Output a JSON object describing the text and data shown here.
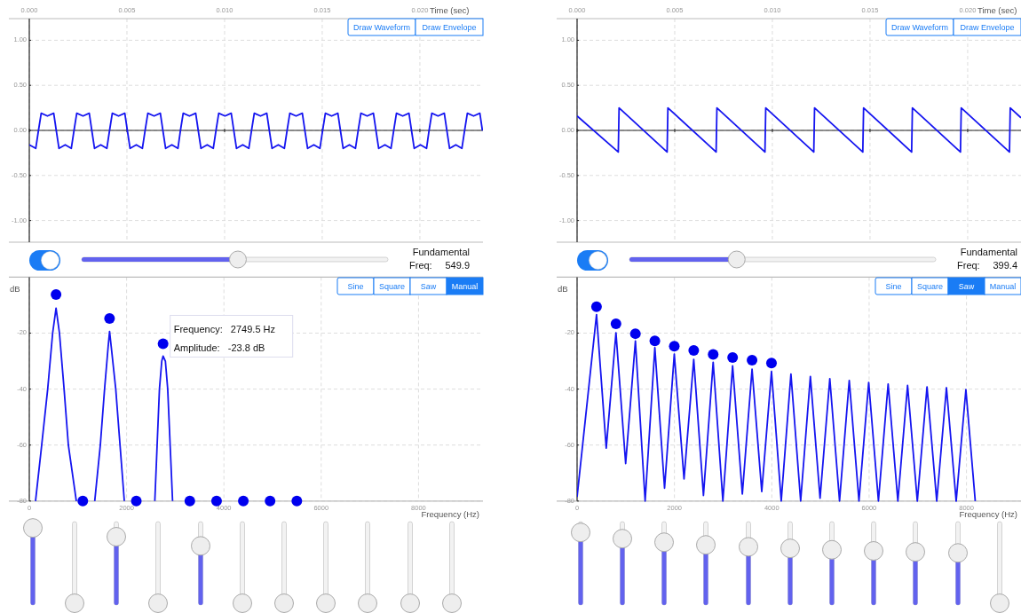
{
  "chart_data": [
    {
      "type": "line",
      "xlabel": "Time (sec)",
      "xlim": [
        0,
        0.02323
      ],
      "ylim": [
        -1.24,
        1.24
      ],
      "grid": true,
      "xticks": [
        {
          "value": 0,
          "label": "0.000"
        },
        {
          "value": 0.005,
          "label": "0.005"
        },
        {
          "value": 0.01,
          "label": "0.010"
        },
        {
          "value": 0.015,
          "label": "0.015"
        },
        {
          "value": 0.02,
          "label": "0.020"
        }
      ],
      "yticks": [
        {
          "value": 1,
          "label": "1.00"
        },
        {
          "value": 0.5,
          "label": "0.50"
        },
        {
          "value": 0,
          "label": "0.00"
        },
        {
          "value": -0.5,
          "label": "-0.50"
        },
        {
          "value": -1,
          "label": "-1.00"
        }
      ],
      "annotations": [
        "Draw Waveform",
        "Draw Envelope",
        "Fundamental",
        "Freq:",
        "549.9"
      ],
      "series": [
        {
          "color": "#1515f0",
          "x": [
            0,
            0.00033,
            0.00047,
            0.00061,
            0.00093,
            0.00125,
            0.00138,
            0.00152,
            0.00184,
            0.00215,
            0.00229,
            0.00243,
            0.00275,
            0.00307,
            0.0032,
            0.00334,
            0.00366,
            0.00397,
            0.00411,
            0.00425,
            0.00457,
            0.00489,
            0.00502,
            0.00516,
            0.00548,
            0.00579,
            0.00593,
            0.00607,
            0.00639,
            0.00671,
            0.00684,
            0.00698,
            0.0073,
            0.00761,
            0.00774,
            0.00788,
            0.0082,
            0.00852,
            0.00865,
            0.00879,
            0.00911,
            0.00942,
            0.00956,
            0.0097,
            0.01002,
            0.01034,
            0.01047,
            0.01061,
            0.01093,
            0.01124,
            0.01138,
            0.01152,
            0.01184,
            0.01216,
            0.01229,
            0.01243,
            0.01275,
            0.01306,
            0.0132,
            0.01334,
            0.01366,
            0.01398,
            0.01411,
            0.01425,
            0.01457,
            0.01488,
            0.01502,
            0.01516,
            0.01548,
            0.0158,
            0.01593,
            0.01607,
            0.01639,
            0.0167,
            0.01684,
            0.01698,
            0.0173,
            0.01762,
            0.01775,
            0.01789,
            0.01821,
            0.01852,
            0.01866,
            0.0188,
            0.01912,
            0.01944,
            0.01957,
            0.01971,
            0.02003,
            0.02034,
            0.02047,
            0.02061,
            0.02093,
            0.02125,
            0.02138,
            0.02152,
            0.02184,
            0.02215,
            0.02229,
            0.02243,
            0.02275,
            0.02307,
            0.0232
          ],
          "values": [
            -0.16,
            -0.2,
            0,
            0.19,
            0.16,
            0.19,
            0,
            -0.2,
            -0.16,
            -0.2,
            0,
            0.19,
            0.16,
            0.19,
            0,
            -0.2,
            -0.16,
            -0.2,
            0,
            0.19,
            0.16,
            0.19,
            0,
            -0.2,
            -0.16,
            -0.2,
            0,
            0.19,
            0.16,
            0.19,
            0,
            -0.2,
            -0.16,
            -0.2,
            0,
            0.19,
            0.16,
            0.19,
            0,
            -0.2,
            -0.16,
            -0.2,
            0,
            0.19,
            0.16,
            0.19,
            0,
            -0.2,
            -0.16,
            -0.2,
            0,
            0.19,
            0.16,
            0.19,
            0,
            -0.2,
            -0.16,
            -0.2,
            0,
            0.19,
            0.16,
            0.19,
            0,
            -0.2,
            -0.16,
            -0.2,
            0,
            0.19,
            0.16,
            0.19,
            0,
            -0.2,
            -0.16,
            -0.2,
            0,
            0.19,
            0.16,
            0.19,
            0,
            -0.2,
            -0.16,
            -0.2,
            0,
            0.19,
            0.16,
            0.19,
            0,
            -0.2,
            -0.16,
            -0.2,
            0,
            0.19,
            0.16,
            0.19,
            0,
            -0.2,
            -0.16,
            -0.2,
            0,
            0.19,
            0.16,
            0.19,
            0
          ]
        }
      ]
    },
    {
      "type": "line",
      "xlabel": "Frequency (Hz)",
      "ylabel": "dB",
      "xlim": [
        0,
        9325
      ],
      "ylim": [
        -80,
        0
      ],
      "grid": true,
      "xticks": [
        0,
        2000,
        4000,
        6000,
        8000
      ],
      "yticks": [
        -20,
        -40,
        -60,
        -80
      ],
      "annotations": [
        "Sine",
        "Square",
        "Saw",
        "Manual",
        {
          "text": "Frequency:   2749.5 Hz",
          "x": 2749.5,
          "y": -23.8
        },
        {
          "text": "Amplitude:   -23.8 dB",
          "x": 2749.5,
          "y": -23.8
        }
      ],
      "series": [
        {
          "color": "#1515f0",
          "x": [
            128,
            255,
            378,
            480,
            550,
            620,
            715,
            803,
            967,
            1150,
            1345,
            1460,
            1547,
            1620,
            1650,
            1685,
            1777,
            1865,
            1953,
            2200,
            2580,
            2675,
            2723,
            2750,
            2797,
            2845,
            2945
          ],
          "values": [
            -80,
            -60,
            -40,
            -20,
            -11.1,
            -20,
            -40,
            -60,
            -80,
            null,
            -80,
            -60,
            -40,
            -25,
            -19.4,
            -25,
            -40,
            -60,
            -80,
            null,
            -80,
            -40,
            -30,
            -28.2,
            -30,
            -40,
            -80
          ]
        },
        {
          "type": "scatter",
          "marker": "circle",
          "color": "#0000ee",
          "x": [
            549.9,
            1099.8,
            1649.7,
            2199.6,
            2749.5,
            3299.4,
            3849.3,
            4399.2,
            4949.1,
            5499
          ],
          "values": [
            -6.2,
            -80,
            -14.8,
            -80,
            -23.8,
            -80,
            -80,
            -80,
            -80,
            -80
          ]
        }
      ]
    },
    {
      "type": "line",
      "xlabel": "Time (sec)",
      "xlim": [
        0,
        0.02273
      ],
      "ylim": [
        -1.24,
        1.24
      ],
      "grid": true,
      "xticks": [
        {
          "value": 0,
          "label": "0.000"
        },
        {
          "value": 0.005,
          "label": "0.005"
        },
        {
          "value": 0.01,
          "label": "0.010"
        },
        {
          "value": 0.015,
          "label": "0.015"
        },
        {
          "value": 0.02,
          "label": "0.020"
        }
      ],
      "yticks": [
        {
          "value": 1,
          "label": "1.00"
        },
        {
          "value": 0.5,
          "label": "0.50"
        },
        {
          "value": 0,
          "label": "0.00"
        },
        {
          "value": -0.5,
          "label": "-0.50"
        },
        {
          "value": -1,
          "label": "-1.00"
        }
      ],
      "annotations": [
        "Draw Waveform",
        "Draw Envelope",
        "Fundamental",
        "Freq:",
        "399.4"
      ],
      "series": [
        {
          "color": "#1515f0",
          "x": [
            0,
            0.00211,
            0.00215,
            0.00461,
            0.00465,
            0.00712,
            0.00716,
            0.00962,
            0.00966,
            0.01212,
            0.01216,
            0.01463,
            0.01467,
            0.01713,
            0.01717,
            0.01963,
            0.01967,
            0.02214,
            0.02218,
            0.02273
          ],
          "values": [
            0.16,
            -0.24,
            0.25,
            -0.24,
            0.25,
            -0.24,
            0.25,
            -0.24,
            0.25,
            -0.24,
            0.25,
            -0.24,
            0.25,
            -0.24,
            0.25,
            -0.24,
            0.25,
            -0.24,
            0.25,
            0.14
          ]
        }
      ]
    },
    {
      "type": "line",
      "xlabel": "Frequency (Hz)",
      "ylabel": "dB",
      "xlim": [
        0,
        9120
      ],
      "ylim": [
        -80,
        0
      ],
      "grid": true,
      "xticks": [
        0,
        2000,
        4000,
        6000,
        8000
      ],
      "yticks": [
        -20,
        -40,
        -60,
        -80
      ],
      "annotations": [
        "Sine",
        "Square",
        "Saw",
        "Manual"
      ],
      "series": [
        {
          "color": "#1515f0",
          "x": [
            0,
            399.4,
            599,
            798.8,
            998,
            1198.2,
            1398,
            1597.6,
            1797,
            1997,
            2197,
            2396.4,
            2596,
            2795.8,
            2995,
            3195.2,
            3395,
            3594.6,
            3794,
            3994,
            4194,
            4393.4,
            4593,
            4792.8,
            4992,
            5192.2,
            5392,
            5591.6,
            5791,
            5991,
            6191,
            6390.4,
            6590,
            6789.8,
            6990,
            7189.2,
            7389,
            7588.6,
            7788,
            7988,
            8180
          ],
          "values": [
            -78.5,
            -13.4,
            -61.1,
            -19.9,
            -66.6,
            -22.8,
            -80,
            -25.2,
            -75.4,
            -27.5,
            -72.1,
            -29.4,
            -78,
            -30.4,
            -80,
            -31.7,
            -77.5,
            -32.9,
            -76.6,
            -33.7,
            -80,
            -34.6,
            -80,
            -35.5,
            -79,
            -36.3,
            -80,
            -36.9,
            -80,
            -37.6,
            -80,
            -38.2,
            -80,
            -38.7,
            -80,
            -39.2,
            -80,
            -39.5,
            -80,
            -40.2,
            -80
          ]
        },
        {
          "type": "scatter",
          "marker": "circle",
          "color": "#0000ee",
          "x": [
            399.4,
            798.8,
            1198.2,
            1597.6,
            1997,
            2396.4,
            2795.8,
            3195.2,
            3594.6,
            3994
          ],
          "values": [
            -10.6,
            -16.7,
            -20.2,
            -22.8,
            -24.7,
            -26.2,
            -27.6,
            -28.7,
            -29.7,
            -30.7
          ]
        }
      ]
    }
  ]
}
